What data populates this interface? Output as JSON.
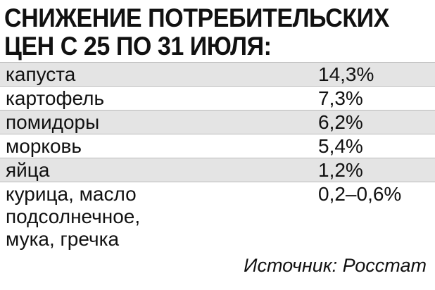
{
  "header": {
    "title_lines": [
      "СНИЖЕНИЕ ПОТРЕБИТЕЛЬСКИХ",
      "ЦЕН С 25 ПО 31 ИЮЛЯ:"
    ]
  },
  "table": {
    "rows": [
      [
        "капуста",
        "14,3%"
      ],
      [
        "картофель",
        "7,3%"
      ],
      [
        "помидоры",
        "6,2%"
      ],
      [
        "морковь",
        "5,4%"
      ],
      [
        "яйца",
        "1,2%"
      ],
      [
        "курица, масло подсолнечное, мука, гречка",
        "0,2–0,6%"
      ]
    ]
  },
  "footer": {
    "source": "Источник: Росстат"
  }
}
